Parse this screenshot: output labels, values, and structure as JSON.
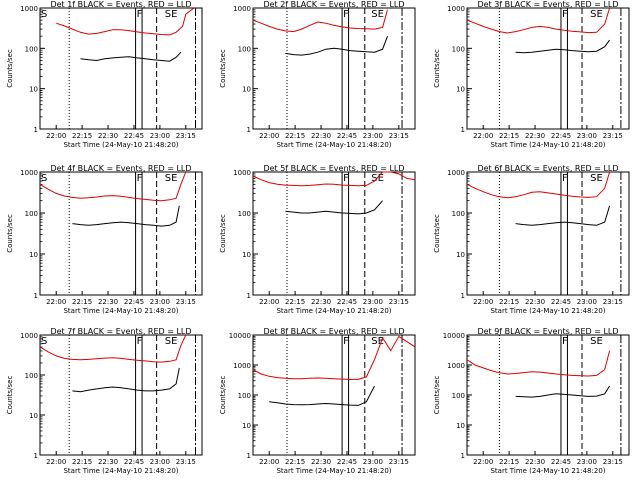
{
  "colors": {
    "events": "#000000",
    "lld": "#e00000",
    "axis": "#000000"
  },
  "y_label": "Counts/sec",
  "y_ticks": [
    "1",
    "10",
    "100",
    "1000"
  ],
  "marker_labels": {
    "s": "S",
    "f": "F",
    "se": "SE"
  },
  "chart_data": [
    {
      "type": "line",
      "title": "Det 1f BLACK = Events, RED = LLD",
      "xlabel": "Start Time (24-May-10 21:48:20)",
      "ylabel": "Counts/sec",
      "yscale": "log",
      "ylim": [
        1,
        1000
      ],
      "xticks": [
        "22:00",
        "22:15",
        "22:30",
        "22:45",
        "23:00",
        "23:15"
      ],
      "series": [
        {
          "x": [
            0.1,
            0.15,
            0.2,
            0.25,
            0.3,
            0.35,
            0.4,
            0.45,
            0.5,
            0.55,
            0.6,
            0.65,
            0.7,
            0.75,
            0.8,
            0.84,
            0.88,
            0.9,
            0.95
          ],
          "values": [
            420,
            360,
            300,
            250,
            225,
            235,
            260,
            290,
            290,
            275,
            255,
            240,
            230,
            220,
            215,
            250,
            350,
            700,
            1000
          ]
        },
        {
          "x": [
            0.25,
            0.3,
            0.35,
            0.4,
            0.45,
            0.5,
            0.55,
            0.6,
            0.65,
            0.7,
            0.75,
            0.8,
            0.84,
            0.87
          ],
          "values": [
            55,
            52,
            50,
            55,
            58,
            60,
            62,
            58,
            55,
            52,
            50,
            48,
            60,
            80
          ]
        }
      ]
    },
    {
      "type": "line",
      "title": "Det 2f BLACK = Events, RED = LLD",
      "xlabel": "Start Time (24-May-10 21:48:20)",
      "ylabel": "Counts/sec",
      "yscale": "log",
      "ylim": [
        1,
        1000
      ],
      "xticks": [
        "22:00",
        "22:15",
        "22:30",
        "22:45",
        "23:00",
        "23:15"
      ],
      "series": [
        {
          "x": [
            0.0,
            0.05,
            0.1,
            0.15,
            0.2,
            0.25,
            0.3,
            0.35,
            0.4,
            0.45,
            0.5,
            0.55,
            0.6,
            0.65,
            0.7,
            0.75,
            0.8,
            0.83
          ],
          "values": [
            500,
            420,
            350,
            300,
            270,
            260,
            300,
            370,
            450,
            420,
            370,
            340,
            320,
            310,
            305,
            300,
            330,
            900
          ]
        },
        {
          "x": [
            0.2,
            0.25,
            0.3,
            0.35,
            0.4,
            0.45,
            0.5,
            0.55,
            0.6,
            0.65,
            0.7,
            0.75,
            0.8,
            0.83
          ],
          "values": [
            75,
            70,
            68,
            72,
            80,
            95,
            100,
            95,
            88,
            85,
            82,
            80,
            95,
            200
          ]
        }
      ]
    },
    {
      "type": "line",
      "title": "Det 3f BLACK = Events, RED = LLD",
      "xlabel": "Start Time (24-May-10 21:48:20)",
      "ylabel": "Counts/sec",
      "yscale": "log",
      "ylim": [
        1,
        1000
      ],
      "xticks": [
        "22:00",
        "22:15",
        "22:30",
        "22:45",
        "23:00",
        "23:15"
      ],
      "series": [
        {
          "x": [
            0.0,
            0.05,
            0.1,
            0.15,
            0.2,
            0.25,
            0.3,
            0.35,
            0.4,
            0.45,
            0.5,
            0.55,
            0.6,
            0.65,
            0.7,
            0.75,
            0.8,
            0.85,
            0.88
          ],
          "values": [
            500,
            420,
            350,
            300,
            260,
            240,
            260,
            290,
            330,
            350,
            330,
            300,
            280,
            265,
            255,
            245,
            250,
            400,
            1000
          ]
        },
        {
          "x": [
            0.3,
            0.35,
            0.4,
            0.45,
            0.5,
            0.55,
            0.6,
            0.65,
            0.7,
            0.75,
            0.8,
            0.85,
            0.88
          ],
          "values": [
            80,
            78,
            80,
            85,
            90,
            95,
            92,
            88,
            85,
            82,
            85,
            110,
            160
          ]
        }
      ]
    },
    {
      "type": "line",
      "title": "Det 4f BLACK = Events, RED = LLD",
      "xlabel": "Start Time (24-May-10 21:48:20)",
      "ylabel": "Counts/sec",
      "yscale": "log",
      "ylim": [
        1,
        1000
      ],
      "xticks": [
        "22:00",
        "22:15",
        "22:30",
        "22:45",
        "23:00",
        "23:15"
      ],
      "series": [
        {
          "x": [
            0.0,
            0.05,
            0.1,
            0.15,
            0.2,
            0.25,
            0.3,
            0.35,
            0.4,
            0.45,
            0.5,
            0.55,
            0.6,
            0.65,
            0.7,
            0.75,
            0.8,
            0.84,
            0.87,
            0.9
          ],
          "values": [
            500,
            380,
            300,
            260,
            240,
            230,
            235,
            245,
            260,
            265,
            255,
            240,
            225,
            215,
            205,
            200,
            210,
            230,
            500,
            1000
          ]
        },
        {
          "x": [
            0.2,
            0.25,
            0.3,
            0.35,
            0.4,
            0.45,
            0.5,
            0.55,
            0.6,
            0.65,
            0.7,
            0.75,
            0.8,
            0.84,
            0.86
          ],
          "values": [
            55,
            52,
            50,
            52,
            55,
            58,
            60,
            58,
            55,
            52,
            50,
            48,
            50,
            60,
            150
          ]
        }
      ]
    },
    {
      "type": "line",
      "title": "Det 5f BLACK = Events, RED = LLD",
      "xlabel": "Start Time (24-May-10 21:48:20)",
      "ylabel": "Counts/sec",
      "yscale": "log",
      "ylim": [
        1,
        1000
      ],
      "xticks": [
        "22:00",
        "22:15",
        "22:30",
        "22:45",
        "23:00",
        "23:15"
      ],
      "series": [
        {
          "x": [
            0.0,
            0.05,
            0.1,
            0.15,
            0.2,
            0.25,
            0.3,
            0.35,
            0.4,
            0.45,
            0.5,
            0.55,
            0.6,
            0.65,
            0.7,
            0.75,
            0.8,
            0.85,
            0.9,
            0.95,
            1.0
          ],
          "values": [
            800,
            650,
            550,
            500,
            480,
            470,
            460,
            470,
            490,
            510,
            500,
            480,
            470,
            460,
            470,
            600,
            1000,
            1000,
            900,
            700,
            650
          ]
        },
        {
          "x": [
            0.2,
            0.25,
            0.3,
            0.35,
            0.4,
            0.45,
            0.5,
            0.55,
            0.6,
            0.65,
            0.7,
            0.75,
            0.8
          ],
          "values": [
            110,
            105,
            100,
            100,
            105,
            110,
            105,
            100,
            98,
            95,
            100,
            120,
            200
          ]
        }
      ]
    },
    {
      "type": "line",
      "title": "Det 6f BLACK = Events, RED = LLD",
      "xlabel": "Start Time (24-May-10 21:48:20)",
      "ylabel": "Counts/sec",
      "yscale": "log",
      "ylim": [
        1,
        1000
      ],
      "xticks": [
        "22:00",
        "22:15",
        "22:30",
        "22:45",
        "23:00",
        "23:15"
      ],
      "series": [
        {
          "x": [
            0.0,
            0.05,
            0.1,
            0.15,
            0.2,
            0.25,
            0.3,
            0.35,
            0.4,
            0.45,
            0.5,
            0.55,
            0.6,
            0.65,
            0.7,
            0.75,
            0.8,
            0.85,
            0.88
          ],
          "values": [
            500,
            400,
            330,
            280,
            250,
            235,
            250,
            280,
            320,
            330,
            310,
            290,
            270,
            255,
            245,
            240,
            250,
            400,
            1000
          ]
        },
        {
          "x": [
            0.3,
            0.35,
            0.4,
            0.45,
            0.5,
            0.55,
            0.6,
            0.65,
            0.7,
            0.75,
            0.8,
            0.85,
            0.88
          ],
          "values": [
            55,
            52,
            50,
            52,
            55,
            58,
            60,
            58,
            55,
            52,
            50,
            60,
            150
          ]
        }
      ]
    },
    {
      "type": "line",
      "title": "Det 7f BLACK = Events, RED = LLD",
      "xlabel": "Start Time (24-May-10 21:48:20)",
      "ylabel": "Counts/sec",
      "yscale": "log",
      "ylim": [
        1,
        1000
      ],
      "xticks": [
        "22:00",
        "22:15",
        "22:30",
        "22:45",
        "23:00",
        "23:15"
      ],
      "series": [
        {
          "x": [
            0.0,
            0.05,
            0.1,
            0.15,
            0.2,
            0.25,
            0.3,
            0.35,
            0.4,
            0.45,
            0.5,
            0.55,
            0.6,
            0.65,
            0.7,
            0.75,
            0.8,
            0.84,
            0.87,
            0.9
          ],
          "values": [
            500,
            380,
            300,
            260,
            245,
            240,
            245,
            255,
            265,
            270,
            260,
            245,
            235,
            225,
            215,
            210,
            220,
            240,
            550,
            1000
          ]
        },
        {
          "x": [
            0.2,
            0.25,
            0.3,
            0.35,
            0.4,
            0.45,
            0.5,
            0.55,
            0.6,
            0.65,
            0.7,
            0.75,
            0.8,
            0.84,
            0.86
          ],
          "values": [
            40,
            38,
            42,
            45,
            48,
            50,
            48,
            45,
            42,
            40,
            40,
            42,
            45,
            60,
            150
          ]
        }
      ]
    },
    {
      "type": "line",
      "title": "Det 8f BLACK = Events, RED = LLD",
      "xlabel": "Start Time (24-May-10 21:48:20)",
      "ylabel": "Counts/sec",
      "yscale": "log",
      "ylim": [
        1,
        10000
      ],
      "xticks": [
        "22:00",
        "22:15",
        "22:30",
        "22:45",
        "23:00",
        "23:15"
      ],
      "series": [
        {
          "x": [
            0.0,
            0.05,
            0.1,
            0.15,
            0.2,
            0.25,
            0.3,
            0.35,
            0.4,
            0.45,
            0.5,
            0.55,
            0.6,
            0.65,
            0.7,
            0.75,
            0.8,
            0.85,
            0.9,
            0.95,
            1.0
          ],
          "values": [
            700,
            500,
            420,
            380,
            360,
            350,
            350,
            360,
            370,
            360,
            350,
            340,
            330,
            330,
            400,
            1500,
            8000,
            3000,
            9000,
            6000,
            4000
          ]
        },
        {
          "x": [
            0.1,
            0.15,
            0.2,
            0.25,
            0.3,
            0.35,
            0.4,
            0.45,
            0.5,
            0.55,
            0.6,
            0.65,
            0.7,
            0.75
          ],
          "values": [
            60,
            55,
            50,
            48,
            47,
            48,
            50,
            52,
            50,
            48,
            46,
            45,
            60,
            200
          ]
        }
      ]
    },
    {
      "type": "line",
      "title": "Det 9f BLACK = Events, RED = LLD",
      "xlabel": "Start Time (24-May-10 21:48:20)",
      "ylabel": "Counts/sec",
      "yscale": "log",
      "ylim": [
        1,
        10000
      ],
      "xticks": [
        "22:00",
        "22:15",
        "22:30",
        "22:45",
        "23:00",
        "23:15"
      ],
      "series": [
        {
          "x": [
            0.0,
            0.05,
            0.1,
            0.15,
            0.2,
            0.25,
            0.3,
            0.35,
            0.4,
            0.45,
            0.5,
            0.55,
            0.6,
            0.65,
            0.7,
            0.75,
            0.8,
            0.85,
            0.88
          ],
          "values": [
            1500,
            1000,
            800,
            650,
            550,
            500,
            520,
            560,
            600,
            580,
            540,
            500,
            470,
            450,
            440,
            430,
            450,
            700,
            3000
          ]
        },
        {
          "x": [
            0.3,
            0.35,
            0.4,
            0.45,
            0.5,
            0.55,
            0.6,
            0.65,
            0.7,
            0.75,
            0.8,
            0.85,
            0.88
          ],
          "values": [
            90,
            88,
            85,
            90,
            100,
            110,
            105,
            100,
            95,
            90,
            92,
            110,
            200
          ]
        }
      ]
    }
  ]
}
